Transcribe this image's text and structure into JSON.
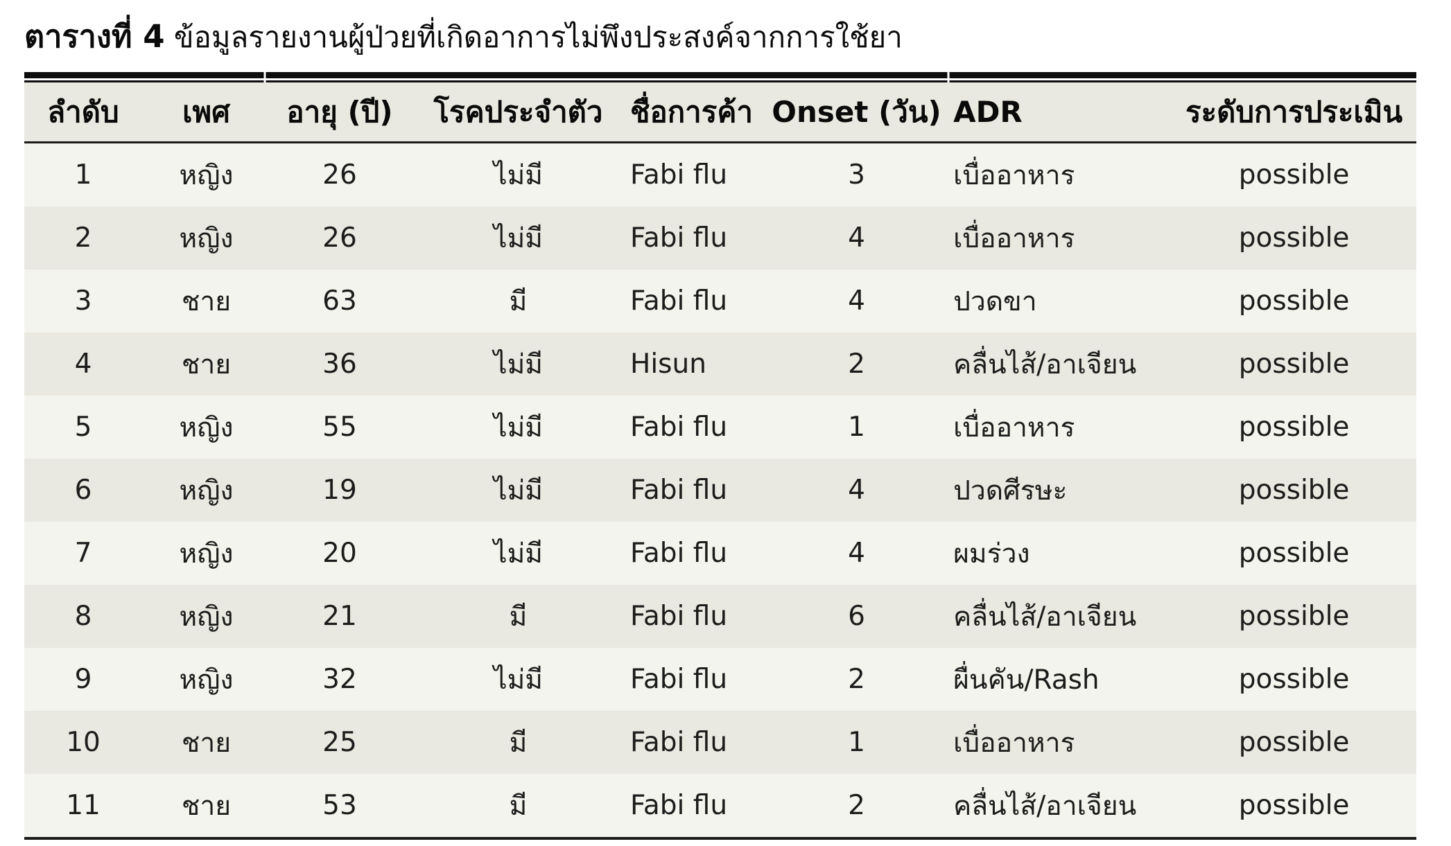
{
  "title": {
    "label": "ตารางที่ 4",
    "text": "ข้อมูลรายงานผู้ป่วยที่เกิดอาการไม่พึงประสงค์จากการใช้ยา"
  },
  "table": {
    "columns": [
      "ลำดับ",
      "เพศ",
      "อายุ (ปี)",
      "โรคประจำตัว",
      "ชื่อการค้า",
      "Onset (วัน)",
      "ADR",
      "ระดับการประเมิน"
    ],
    "rows": [
      [
        "1",
        "หญิง",
        "26",
        "ไม่มี",
        "Fabi flu",
        "3",
        "เบื่ออาหาร",
        "possible"
      ],
      [
        "2",
        "หญิง",
        "26",
        "ไม่มี",
        "Fabi flu",
        "4",
        "เบื่ออาหาร",
        "possible"
      ],
      [
        "3",
        "ชาย",
        "63",
        "มี",
        "Fabi flu",
        "4",
        "ปวดขา",
        "possible"
      ],
      [
        "4",
        "ชาย",
        "36",
        "ไม่มี",
        "Hisun",
        "2",
        "คลื่นไส้/อาเจียน",
        "possible"
      ],
      [
        "5",
        "หญิง",
        "55",
        "ไม่มี",
        "Fabi flu",
        "1",
        "เบื่ออาหาร",
        "possible"
      ],
      [
        "6",
        "หญิง",
        "19",
        "ไม่มี",
        "Fabi flu",
        "4",
        "ปวดศีรษะ",
        "possible"
      ],
      [
        "7",
        "หญิง",
        "20",
        "ไม่มี",
        "Fabi flu",
        "4",
        "ผมร่วง",
        "possible"
      ],
      [
        "8",
        "หญิง",
        "21",
        "มี",
        "Fabi flu",
        "6",
        "คลื่นไส้/อาเจียน",
        "possible"
      ],
      [
        "9",
        "หญิง",
        "32",
        "ไม่มี",
        "Fabi flu",
        "2",
        "ผื่นคัน/Rash",
        "possible"
      ],
      [
        "10",
        "ชาย",
        "25",
        "มี",
        "Fabi flu",
        "1",
        "เบื่ออาหาร",
        "possible"
      ],
      [
        "11",
        "ชาย",
        "53",
        "มี",
        "Fabi flu",
        "2",
        "คลื่นไส้/อาเจียน",
        "possible"
      ]
    ]
  },
  "colors": {
    "rule": "#0d0d0d",
    "text": "#1c1c1c",
    "header_bg": "#e9e9e1",
    "row_bg": "#f4f4ee",
    "row_alt_bg": "#e9e9e1"
  }
}
